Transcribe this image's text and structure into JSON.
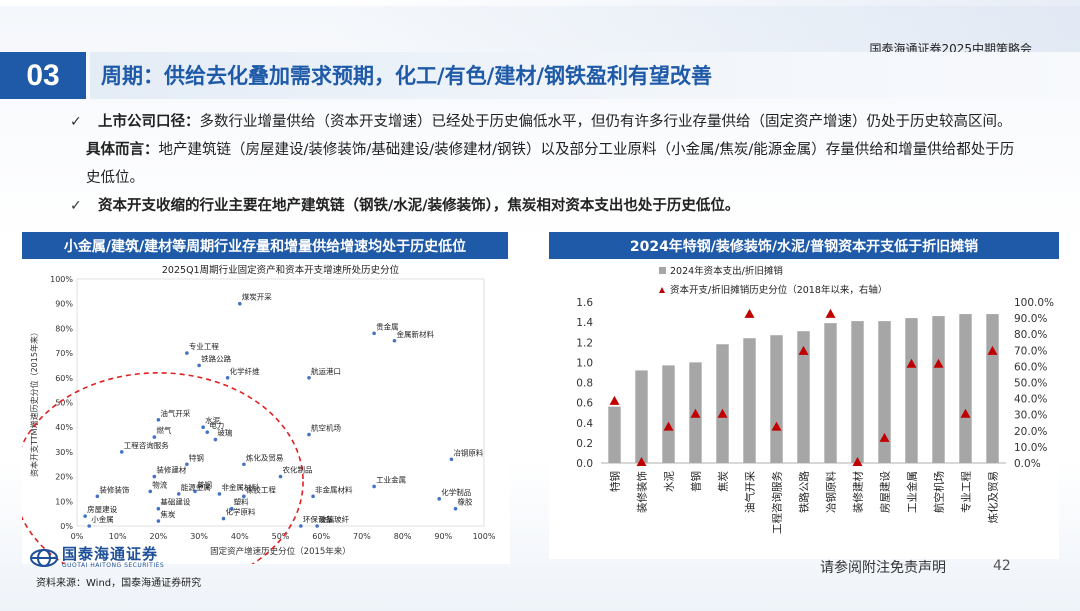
{
  "header": {
    "company": "国泰海通证券2025中期策略会",
    "section_number": "03",
    "title": "周期：供给去化叠加需求预期，化工/有色/建材/钢铁盈利有望改善"
  },
  "bullets": [
    {
      "lead": "上市公司口径：",
      "text1": "多数行业增量供给（资本开支增速）已经处于历史偏低水平，但仍有许多行业存量供给（固定资产增速）仍处于历史较高区间。",
      "lead2": "具体而言：",
      "text2": "地产建筑链（房屋建设/装修装饰/基础建设/装修建材/钢铁）以及部分工业原料（小金属/焦炭/能源金属）存量供给和增量供给都处于历史低位。"
    },
    {
      "lead": "资本开支收缩的行业主要在地产建筑链（钢铁/水泥/装修装饰），焦炭相对资本支出也处于历史低位。"
    }
  ],
  "left_panel": {
    "heading": "小金属/建筑/建材等周期行业存量和增量供给增速均处于历史低位"
  },
  "right_panel": {
    "heading": "2024年特钢/装修装饰/水泥/普钢资本开支低于折旧摊销"
  },
  "footer": {
    "logo_cn": "国泰海通证券",
    "logo_en": "GUOTAI HAITONG SECURITIES",
    "source": "资料来源：Wind，国泰海通证券研究",
    "disclaimer": "请参阅附注免责声明",
    "page": "42"
  },
  "colors": {
    "brand": "#1e5aa8",
    "bar": "#a6a6a6",
    "marker": "#c00000",
    "scatter": "#4472c4",
    "circle": "#e02020"
  },
  "chart_data": [
    {
      "type": "scatter",
      "title": "2025Q1周期行业固定资产和资本开支增速所处历史分位",
      "xlabel": "固定资产增速历史分位（2015年来）",
      "ylabel": "资本开支TTM增速历史分位（2015年来）",
      "xlim": [
        0,
        100
      ],
      "ylim": [
        0,
        100
      ],
      "xticks": [
        "0%",
        "10%",
        "20%",
        "30%",
        "40%",
        "50%",
        "60%",
        "70%",
        "80%",
        "90%",
        "100%"
      ],
      "yticks": [
        "0%",
        "10%",
        "20%",
        "30%",
        "40%",
        "50%",
        "60%",
        "70%",
        "80%",
        "90%",
        "100%"
      ],
      "grid": false,
      "points": [
        {
          "label": "煤炭开采",
          "x": 40,
          "y": 90
        },
        {
          "label": "贵金属",
          "x": 73,
          "y": 78
        },
        {
          "label": "金属新材料",
          "x": 78,
          "y": 75
        },
        {
          "label": "专业工程",
          "x": 27,
          "y": 70
        },
        {
          "label": "铁路公路",
          "x": 30,
          "y": 65
        },
        {
          "label": "化学纤维",
          "x": 37,
          "y": 60
        },
        {
          "label": "航运港口",
          "x": 57,
          "y": 60
        },
        {
          "label": "油气开采",
          "x": 20,
          "y": 43
        },
        {
          "label": "水泥",
          "x": 31,
          "y": 40
        },
        {
          "label": "电力",
          "x": 32,
          "y": 38
        },
        {
          "label": "燃气",
          "x": 19,
          "y": 36
        },
        {
          "label": "玻璃",
          "x": 34,
          "y": 35
        },
        {
          "label": "航空机场",
          "x": 57,
          "y": 37
        },
        {
          "label": "工程咨询服务",
          "x": 11,
          "y": 30
        },
        {
          "label": "特钢",
          "x": 27,
          "y": 25
        },
        {
          "label": "炼化及贸易",
          "x": 41,
          "y": 25
        },
        {
          "label": "冶钢原料",
          "x": 92,
          "y": 27
        },
        {
          "label": "装修建材",
          "x": 19,
          "y": 20
        },
        {
          "label": "农化制品",
          "x": 50,
          "y": 20
        },
        {
          "label": "装修装饰",
          "x": 5,
          "y": 12
        },
        {
          "label": "物流",
          "x": 18,
          "y": 14
        },
        {
          "label": "能源金属",
          "x": 25,
          "y": 13
        },
        {
          "label": "普钢",
          "x": 29,
          "y": 14
        },
        {
          "label": "非金属材料",
          "x": 35,
          "y": 13
        },
        {
          "label": "橡胶工程",
          "x": 41,
          "y": 12
        },
        {
          "label": "工业金属",
          "x": 73,
          "y": 16
        },
        {
          "label": "非金属材料",
          "x": 58,
          "y": 12
        },
        {
          "label": "化学制品",
          "x": 89,
          "y": 11
        },
        {
          "label": "基础建设",
          "x": 20,
          "y": 7
        },
        {
          "label": "塑料",
          "x": 38,
          "y": 7
        },
        {
          "label": "房屋建设",
          "x": 2,
          "y": 4
        },
        {
          "label": "焦炭",
          "x": 20,
          "y": 2
        },
        {
          "label": "化学原料",
          "x": 36,
          "y": 3
        },
        {
          "label": "环保设备",
          "x": 55,
          "y": 0
        },
        {
          "label": "玻璃玻纤",
          "x": 59,
          "y": 0
        },
        {
          "label": "橡胶",
          "x": 93,
          "y": 7
        },
        {
          "label": "小金属",
          "x": 3,
          "y": 0
        }
      ],
      "label_list_note": ""
    },
    {
      "type": "bar",
      "series": [
        {
          "name": "2024年资本支出/折旧摊销",
          "values": [
            0.56,
            0.92,
            0.97,
            1.0,
            1.18,
            1.24,
            1.27,
            1.31,
            1.39,
            1.41,
            1.41,
            1.44,
            1.46,
            1.48,
            1.48
          ]
        },
        {
          "name": "资本开支/折旧摊销历史分位（2018年以来，右轴）",
          "values": [
            38,
            0,
            22,
            30,
            30,
            92,
            22,
            69,
            92,
            0,
            15,
            61,
            61,
            30,
            69
          ]
        }
      ],
      "categories": [
        "特钢",
        "装修装饰",
        "水泥",
        "普钢",
        "焦炭",
        "油气开采",
        "工程咨询服务",
        "铁路公路",
        "冶钢原料",
        "装修建材",
        "房屋建设",
        "工业金属",
        "航空机场",
        "专业工程",
        "炼化及贸易"
      ],
      "ylim": [
        0,
        1.6
      ],
      "yticks": [
        "0.0",
        "0.2",
        "0.4",
        "0.6",
        "0.8",
        "1.0",
        "1.2",
        "1.4",
        "1.6"
      ],
      "y2lim": [
        0,
        100
      ],
      "y2ticks": [
        "0.0%",
        "10.0%",
        "20.0%",
        "30.0%",
        "40.0%",
        "50.0%",
        "60.0%",
        "70.0%",
        "80.0%",
        "90.0%",
        "100.0%"
      ],
      "grid": false,
      "legend": "top"
    }
  ]
}
